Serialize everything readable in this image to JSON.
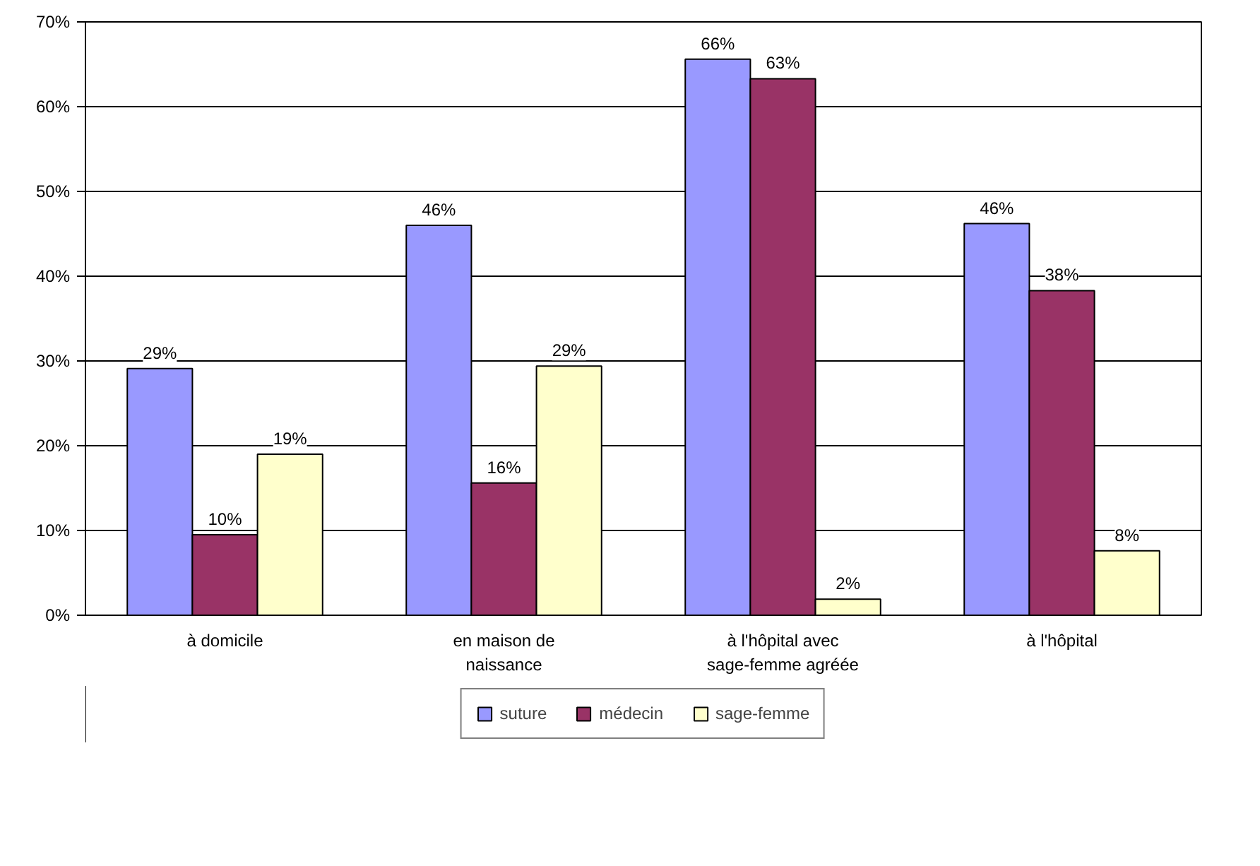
{
  "chart_data": {
    "type": "bar",
    "categories": [
      "à domicile",
      "en maison de naissance",
      "à l'hôpital avec sage-femme agréée",
      "à l'hôpital"
    ],
    "series": [
      {
        "name": "suture",
        "color": "#9999ff",
        "values": [
          29.1,
          46.0,
          65.6,
          46.2
        ],
        "value_labels": [
          "29%",
          "46%",
          "66%",
          "46%"
        ]
      },
      {
        "name": "médecin",
        "color": "#993366",
        "values": [
          9.5,
          15.6,
          63.3,
          38.3
        ],
        "value_labels": [
          "10%",
          "16%",
          "63%",
          "38%"
        ]
      },
      {
        "name": "sage-femme",
        "color": "#ffffcc",
        "values": [
          19.0,
          29.4,
          1.9,
          7.6
        ],
        "value_labels": [
          "19%",
          "29%",
          "2%",
          "8%"
        ]
      }
    ],
    "ylim": [
      0,
      70
    ],
    "yticks": [
      {
        "value": 0,
        "label": "0%"
      },
      {
        "value": 10,
        "label": "10%"
      },
      {
        "value": 20,
        "label": "20%"
      },
      {
        "value": 30,
        "label": "30%"
      },
      {
        "value": 40,
        "label": "40%"
      },
      {
        "value": 50,
        "label": "50%"
      },
      {
        "value": 60,
        "label": "60%"
      },
      {
        "value": 70,
        "label": "70%"
      }
    ],
    "grid": "y",
    "legend": "bottom"
  }
}
